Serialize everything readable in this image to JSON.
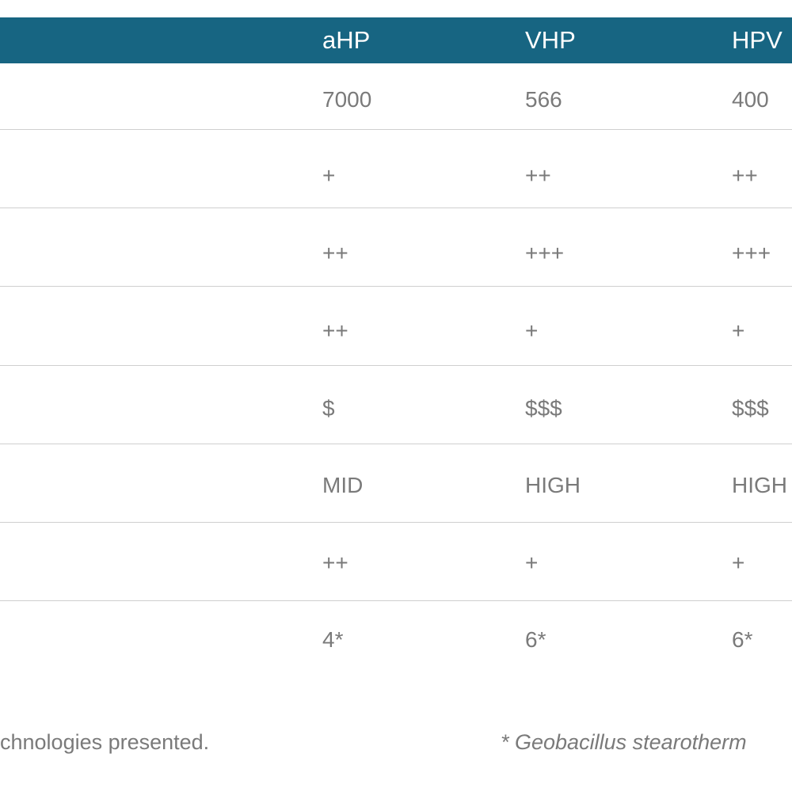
{
  "table": {
    "header": [
      "aHP",
      "VHP",
      "HPV"
    ],
    "rows": [
      [
        "7000",
        "566",
        "400"
      ],
      [
        "+",
        "++",
        "++"
      ],
      [
        "++",
        "+++",
        "+++"
      ],
      [
        "++",
        "+",
        "+"
      ],
      [
        "$",
        "$$$",
        "$$$"
      ],
      [
        "MID",
        "HIGH",
        "HIGH"
      ],
      [
        "++",
        "+",
        "+"
      ],
      [
        "4*",
        "6*",
        "6*"
      ]
    ]
  },
  "footnotes": [
    "chnologies presented.",
    "* Geobacillus stearotherm"
  ]
}
